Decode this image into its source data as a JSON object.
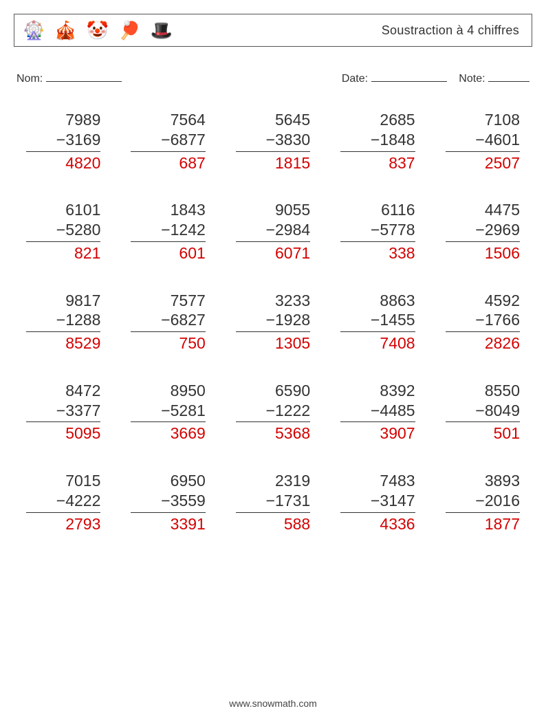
{
  "header": {
    "title": "Soustraction à 4 chiffres",
    "icons": [
      "🎡",
      "🎪",
      "🤡",
      "🏓",
      "🎩"
    ]
  },
  "meta": {
    "name_label": "Nom:",
    "date_label": "Date:",
    "note_label": "Note:"
  },
  "style": {
    "answer_color": "#d40000",
    "text_color": "#333333",
    "minus_glyph": "−",
    "columns": 5,
    "font_size_problem": 23,
    "row_gap": 40,
    "col_gap": 44
  },
  "problems": [
    {
      "a": 7989,
      "b": 3169,
      "r": 4820
    },
    {
      "a": 7564,
      "b": 6877,
      "r": 687
    },
    {
      "a": 5645,
      "b": 3830,
      "r": 1815
    },
    {
      "a": 2685,
      "b": 1848,
      "r": 837
    },
    {
      "a": 7108,
      "b": 4601,
      "r": 2507
    },
    {
      "a": 6101,
      "b": 5280,
      "r": 821
    },
    {
      "a": 1843,
      "b": 1242,
      "r": 601
    },
    {
      "a": 9055,
      "b": 2984,
      "r": 6071
    },
    {
      "a": 6116,
      "b": 5778,
      "r": 338
    },
    {
      "a": 4475,
      "b": 2969,
      "r": 1506
    },
    {
      "a": 9817,
      "b": 1288,
      "r": 8529
    },
    {
      "a": 7577,
      "b": 6827,
      "r": 750
    },
    {
      "a": 3233,
      "b": 1928,
      "r": 1305
    },
    {
      "a": 8863,
      "b": 1455,
      "r": 7408
    },
    {
      "a": 4592,
      "b": 1766,
      "r": 2826
    },
    {
      "a": 8472,
      "b": 3377,
      "r": 5095
    },
    {
      "a": 8950,
      "b": 5281,
      "r": 3669
    },
    {
      "a": 6590,
      "b": 1222,
      "r": 5368
    },
    {
      "a": 8392,
      "b": 4485,
      "r": 3907
    },
    {
      "a": 8550,
      "b": 8049,
      "r": 501
    },
    {
      "a": 7015,
      "b": 4222,
      "r": 2793
    },
    {
      "a": 6950,
      "b": 3559,
      "r": 3391
    },
    {
      "a": 2319,
      "b": 1731,
      "r": 588
    },
    {
      "a": 7483,
      "b": 3147,
      "r": 4336
    },
    {
      "a": 3893,
      "b": 2016,
      "r": 1877
    }
  ],
  "footer": {
    "url": "www.snowmath.com"
  }
}
